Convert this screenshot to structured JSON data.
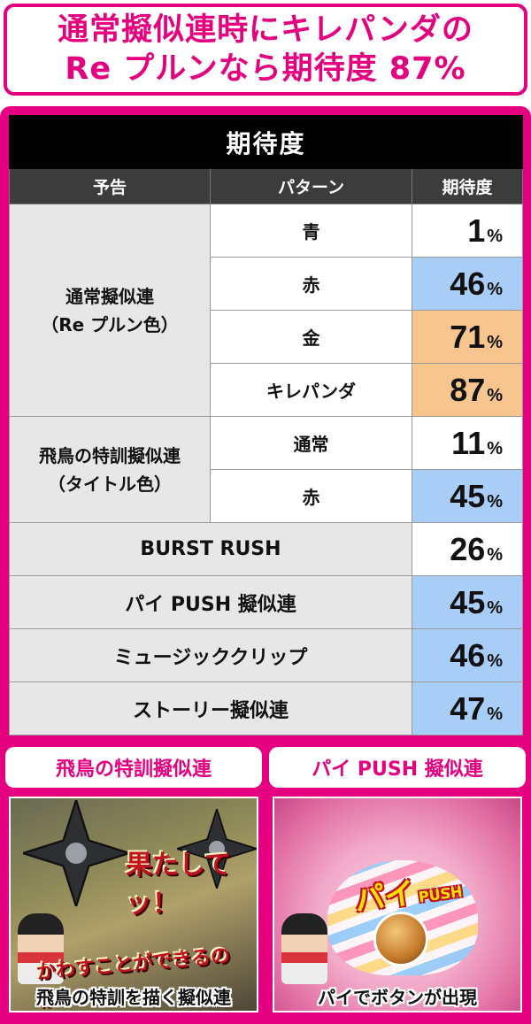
{
  "headline": {
    "line1": "通常擬似連時にキレパンダの",
    "line2": "Re プルンなら期待度 87%"
  },
  "table": {
    "title": "期待度",
    "headers": [
      "予告",
      "パターン",
      "期待度"
    ],
    "pct_unit": "%",
    "groups": [
      {
        "category_line1": "通常擬似連",
        "category_line2": "（Re プルン色）",
        "rows": [
          {
            "pattern": "青",
            "value": "1",
            "highlight": "none"
          },
          {
            "pattern": "赤",
            "value": "46",
            "highlight": "blue"
          },
          {
            "pattern": "金",
            "value": "71",
            "highlight": "orange"
          },
          {
            "pattern": "キレパンダ",
            "value": "87",
            "highlight": "orange"
          }
        ]
      },
      {
        "category_line1": "飛鳥の特訓擬似連",
        "category_line2": "（タイトル色）",
        "rows": [
          {
            "pattern": "通常",
            "value": "11",
            "highlight": "none"
          },
          {
            "pattern": "赤",
            "value": "45",
            "highlight": "blue"
          }
        ]
      }
    ],
    "single_rows": [
      {
        "label": "BURST RUSH",
        "value": "26",
        "highlight": "none"
      },
      {
        "label": "パイ PUSH 擬似連",
        "value": "45",
        "highlight": "blue"
      },
      {
        "label": "ミュージッククリップ",
        "value": "46",
        "highlight": "blue"
      },
      {
        "label": "ストーリー擬似連",
        "value": "47",
        "highlight": "blue"
      }
    ]
  },
  "panels": [
    {
      "label": "飛鳥の特訓擬似連",
      "caption": "飛鳥の特訓を描く擬似連",
      "scene_text_1": "果たしてッ！",
      "scene_text_2": "かわすことができるのか!"
    },
    {
      "label": "パイ PUSH 擬似連",
      "caption": "パイでボタンが出現",
      "scene_text_1": "パイ",
      "scene_text_2": "PUSH"
    }
  ],
  "colors": {
    "accent": "#e4007f",
    "highlight_blue": "#a8cdf7",
    "highlight_orange": "#f9c58e",
    "category_bg": "#e7e7e7"
  }
}
